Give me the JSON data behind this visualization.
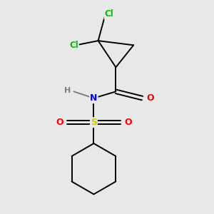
{
  "background_color": "#e8e8e8",
  "atom_colors": {
    "C": "#000000",
    "Cl": "#00bb00",
    "N": "#0000ff",
    "O": "#ff0000",
    "S": "#cccc00",
    "H": "#708090"
  },
  "figsize": [
    3.0,
    3.0
  ],
  "dpi": 100,
  "xlim": [
    0.15,
    0.85
  ],
  "ylim": [
    0.02,
    0.98
  ]
}
